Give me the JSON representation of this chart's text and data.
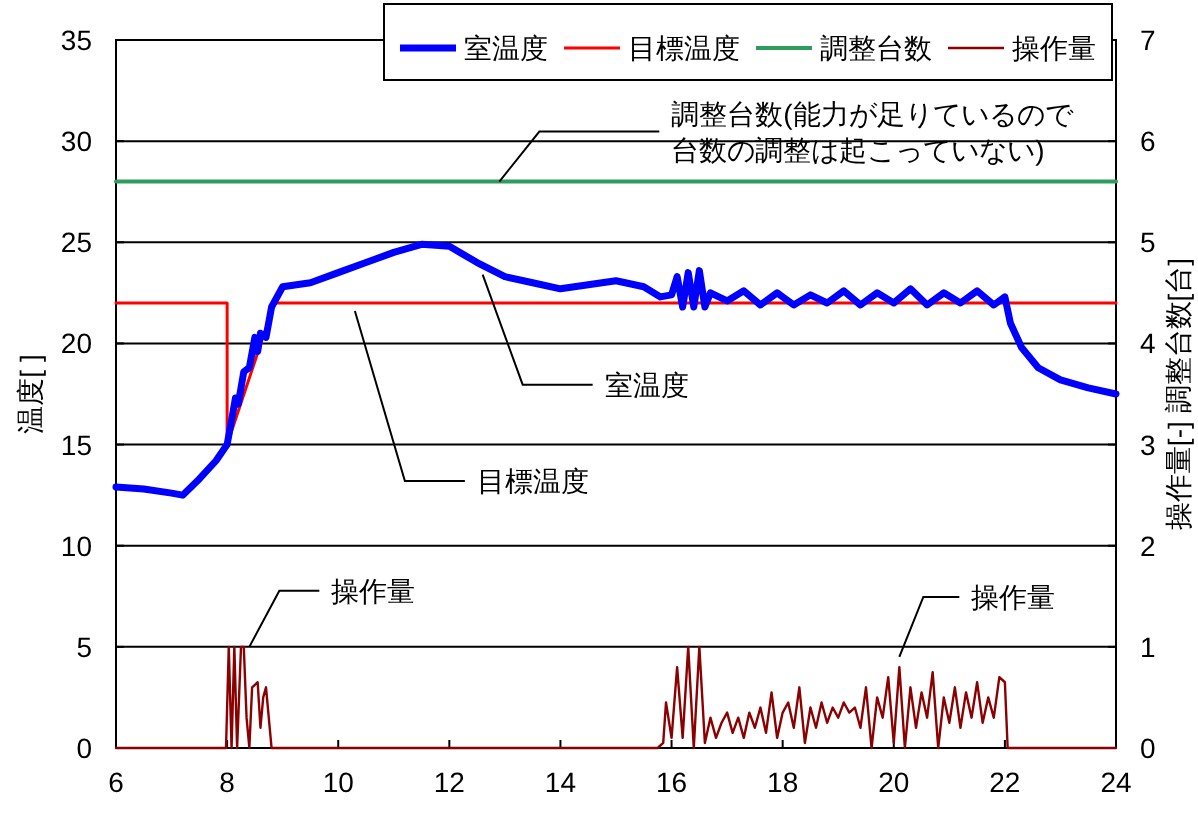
{
  "chart_data": {
    "type": "line",
    "ylabel": "温度[ ]",
    "y2label": "操作量[-] 調整台数[台]",
    "xlim": [
      6,
      24
    ],
    "xticks": [
      6,
      8,
      10,
      12,
      14,
      16,
      18,
      20,
      22,
      24
    ],
    "ylim": [
      0,
      35
    ],
    "yticks": [
      0,
      5,
      10,
      15,
      20,
      25,
      30,
      35
    ],
    "y2lim": [
      0,
      7
    ],
    "y2ticks": [
      0,
      1,
      2,
      3,
      4,
      5,
      6,
      7
    ],
    "grid": "y",
    "legend": "top right",
    "marker": "none",
    "line_style": "solid",
    "series": [
      {
        "name": "室温度",
        "color": "#0000ff",
        "x": [
          6,
          6.5,
          7,
          7.2,
          7.5,
          7.8,
          8,
          8.1,
          8.15,
          8.2,
          8.3,
          8.4,
          8.5,
          8.55,
          8.6,
          8.7,
          8.8,
          9,
          9.5,
          10,
          10.5,
          11,
          11.5,
          12,
          12.5,
          13,
          13.5,
          14,
          14.5,
          15,
          15.5,
          15.8,
          16,
          16.1,
          16.2,
          16.3,
          16.4,
          16.5,
          16.6,
          16.7,
          17,
          17.3,
          17.6,
          17.9,
          18.2,
          18.5,
          18.8,
          19.1,
          19.4,
          19.7,
          20,
          20.3,
          20.6,
          20.9,
          21.2,
          21.5,
          21.8,
          22,
          22.1,
          22.3,
          22.6,
          23,
          23.5,
          24
        ],
        "values": [
          12.9,
          12.8,
          12.6,
          12.5,
          13.3,
          14.2,
          15,
          16.5,
          17.3,
          17,
          18.6,
          18.8,
          20.3,
          19.6,
          20.5,
          20.3,
          21.8,
          22.8,
          23,
          23.5,
          24,
          24.5,
          24.9,
          24.8,
          24,
          23.3,
          23,
          22.7,
          22.9,
          23.1,
          22.8,
          22.3,
          22.4,
          23.3,
          21.8,
          23.5,
          21.8,
          23.6,
          21.8,
          22.5,
          22.1,
          22.6,
          21.9,
          22.5,
          21.9,
          22.4,
          22,
          22.6,
          21.9,
          22.5,
          22,
          22.7,
          21.9,
          22.5,
          22,
          22.6,
          21.9,
          22.3,
          21,
          19.8,
          18.8,
          18.2,
          17.8,
          17.5
        ]
      },
      {
        "name": "目標温度",
        "color": "#ff0000",
        "x": [
          6,
          8,
          8,
          8.85,
          24
        ],
        "values": [
          22,
          22,
          15,
          22,
          22
        ]
      },
      {
        "name": "調整台数",
        "color": "#2e9b5f",
        "axis": "y2",
        "x": [
          6,
          24
        ],
        "values": [
          5.6,
          5.6
        ]
      },
      {
        "name": "操作量",
        "color": "#8b0000",
        "axis": "y2",
        "x": [
          6,
          7.98,
          8.03,
          8.08,
          8.13,
          8.18,
          8.25,
          8.3,
          8.35,
          8.4,
          8.45,
          8.55,
          8.6,
          8.65,
          8.7,
          8.75,
          8.8,
          8.85,
          15.75,
          15.85,
          15.9,
          16,
          16.1,
          16.2,
          16.3,
          16.4,
          16.5,
          16.6,
          16.7,
          16.8,
          16.9,
          17,
          17.1,
          17.2,
          17.3,
          17.4,
          17.5,
          17.6,
          17.7,
          17.8,
          17.9,
          18,
          18.1,
          18.2,
          18.3,
          18.4,
          18.5,
          18.6,
          18.7,
          18.8,
          18.9,
          19,
          19.1,
          19.2,
          19.3,
          19.4,
          19.5,
          19.6,
          19.7,
          19.8,
          19.9,
          20,
          20.1,
          20.2,
          20.3,
          20.4,
          20.5,
          20.6,
          20.7,
          20.8,
          20.9,
          21,
          21.1,
          21.2,
          21.3,
          21.4,
          21.5,
          21.6,
          21.7,
          21.8,
          21.9,
          22,
          22.05,
          24
        ],
        "values": [
          0,
          0,
          1,
          0,
          1,
          0,
          1,
          1,
          0.3,
          0,
          0.6,
          0.65,
          0.2,
          0.5,
          0.6,
          0.3,
          0,
          0,
          0,
          0.05,
          0.45,
          0.1,
          0.8,
          0.1,
          1,
          0,
          1,
          0.05,
          0.3,
          0.1,
          0.25,
          0.35,
          0.15,
          0.3,
          0.1,
          0.35,
          0.2,
          0.4,
          0.15,
          0.55,
          0.1,
          0.35,
          0.45,
          0.2,
          0.6,
          0.05,
          0.4,
          0.2,
          0.45,
          0.25,
          0.4,
          0.3,
          0.45,
          0.35,
          0.4,
          0.2,
          0.6,
          0,
          0.5,
          0.3,
          0.7,
          0.05,
          0.8,
          0,
          0.6,
          0.2,
          0.55,
          0.3,
          0.75,
          0,
          0.5,
          0.25,
          0.6,
          0.2,
          0.55,
          0.3,
          0.65,
          0.25,
          0.5,
          0.3,
          0.7,
          0.65,
          0,
          0
        ]
      }
    ],
    "annotations": [
      {
        "text": "調整台数(能力が足りているので台数の調整は起こっていない)",
        "x": 12.9,
        "y": 28
      },
      {
        "text": "室温度",
        "x": 12.6,
        "y": 23.4
      },
      {
        "text": "目標温度",
        "x": 10.3,
        "y": 21.6
      },
      {
        "text": "操作量",
        "x": 8.4,
        "y": 5
      },
      {
        "text": "操作量",
        "x": 20.1,
        "y": 4.5
      }
    ]
  }
}
